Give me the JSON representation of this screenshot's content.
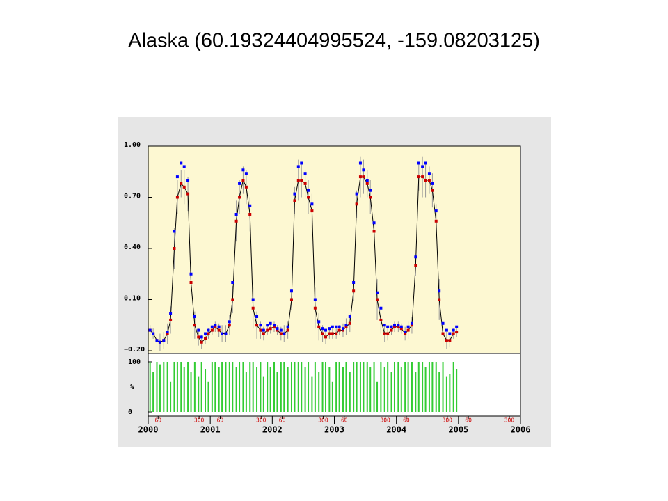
{
  "chart_data": [
    {
      "type": "scatter",
      "title": "Alaska (60.19324404995524, -159.08203125)",
      "x": [
        2000.03,
        2000.08,
        2000.14,
        2000.19,
        2000.25,
        2000.31,
        2000.36,
        2000.42,
        2000.47,
        2000.53,
        2000.58,
        2000.64,
        2000.69,
        2000.75,
        2000.81,
        2000.86,
        2000.92,
        2000.97,
        2001.03,
        2001.08,
        2001.14,
        2001.19,
        2001.25,
        2001.31,
        2001.36,
        2001.42,
        2001.47,
        2001.53,
        2001.58,
        2001.64,
        2001.69,
        2001.75,
        2001.81,
        2001.86,
        2001.92,
        2001.97,
        2002.03,
        2002.08,
        2002.14,
        2002.19,
        2002.25,
        2002.31,
        2002.36,
        2002.42,
        2002.47,
        2002.53,
        2002.58,
        2002.64,
        2002.69,
        2002.75,
        2002.81,
        2002.86,
        2002.92,
        2002.97,
        2003.03,
        2003.08,
        2003.14,
        2003.19,
        2003.25,
        2003.31,
        2003.36,
        2003.42,
        2003.47,
        2003.53,
        2003.58,
        2003.64,
        2003.69,
        2003.75,
        2003.81,
        2003.86,
        2003.92,
        2003.97,
        2004.03,
        2004.08,
        2004.14,
        2004.19,
        2004.25,
        2004.31,
        2004.36,
        2004.42,
        2004.47,
        2004.53,
        2004.58,
        2004.64,
        2004.69,
        2004.75,
        2004.81,
        2004.86,
        2004.92,
        2004.97
      ],
      "series": [
        {
          "color": "#cc0000",
          "line_color": "#000000",
          "values": [
            -0.08,
            -0.1,
            -0.14,
            -0.15,
            -0.14,
            -0.1,
            -0.02,
            0.4,
            0.7,
            0.78,
            0.76,
            0.72,
            0.2,
            -0.05,
            -0.12,
            -0.15,
            -0.13,
            -0.1,
            -0.08,
            -0.06,
            -0.08,
            -0.1,
            -0.1,
            -0.05,
            0.1,
            0.56,
            0.7,
            0.8,
            0.76,
            0.6,
            0.05,
            -0.05,
            -0.08,
            -0.1,
            -0.08,
            -0.07,
            -0.06,
            -0.08,
            -0.1,
            -0.1,
            -0.08,
            0.1,
            0.68,
            0.8,
            0.8,
            0.78,
            0.7,
            0.62,
            0.05,
            -0.06,
            -0.1,
            -0.12,
            -0.1,
            -0.1,
            -0.1,
            -0.08,
            -0.08,
            -0.06,
            -0.04,
            0.15,
            0.66,
            0.82,
            0.82,
            0.78,
            0.7,
            0.5,
            0.1,
            -0.02,
            -0.1,
            -0.1,
            -0.08,
            -0.06,
            -0.06,
            -0.07,
            -0.1,
            -0.08,
            -0.05,
            0.3,
            0.82,
            0.82,
            0.8,
            0.8,
            0.74,
            0.56,
            0.1,
            -0.1,
            -0.14,
            -0.14,
            -0.1,
            -0.09
          ],
          "errors": [
            0.03,
            0.03,
            0.04,
            0.05,
            0.05,
            0.06,
            0.08,
            0.12,
            0.1,
            0.08,
            0.1,
            0.1,
            0.12,
            0.08,
            0.05,
            0.04,
            0.03,
            0.03,
            0.03,
            0.03,
            0.04,
            0.05,
            0.05,
            0.06,
            0.08,
            0.12,
            0.1,
            0.08,
            0.1,
            0.1,
            0.12,
            0.08,
            0.05,
            0.04,
            0.03,
            0.03,
            0.03,
            0.03,
            0.04,
            0.05,
            0.05,
            0.06,
            0.08,
            0.12,
            0.1,
            0.08,
            0.1,
            0.1,
            0.12,
            0.08,
            0.05,
            0.04,
            0.03,
            0.03,
            0.03,
            0.03,
            0.04,
            0.05,
            0.05,
            0.06,
            0.08,
            0.12,
            0.1,
            0.08,
            0.1,
            0.1,
            0.12,
            0.08,
            0.05,
            0.04,
            0.03,
            0.03,
            0.03,
            0.03,
            0.04,
            0.05,
            0.05,
            0.06,
            0.08,
            0.12,
            0.1,
            0.08,
            0.1,
            0.1,
            0.12,
            0.08,
            0.05,
            0.04,
            0.03,
            0.03
          ]
        },
        {
          "color": "#0000ff",
          "values": [
            -0.08,
            -0.1,
            -0.14,
            -0.15,
            -0.14,
            -0.09,
            0.02,
            0.5,
            0.82,
            0.9,
            0.88,
            0.8,
            0.25,
            0.0,
            -0.08,
            -0.12,
            -0.1,
            -0.08,
            -0.06,
            -0.05,
            -0.06,
            -0.1,
            -0.1,
            -0.03,
            0.2,
            0.6,
            0.78,
            0.86,
            0.84,
            0.65,
            0.1,
            0.0,
            -0.05,
            -0.08,
            -0.05,
            -0.04,
            -0.05,
            -0.07,
            -0.08,
            -0.1,
            -0.06,
            0.15,
            0.72,
            0.88,
            0.9,
            0.84,
            0.74,
            0.66,
            0.1,
            -0.03,
            -0.07,
            -0.08,
            -0.07,
            -0.06,
            -0.06,
            -0.06,
            -0.07,
            -0.05,
            0.0,
            0.2,
            0.72,
            0.9,
            0.86,
            0.8,
            0.74,
            0.55,
            0.14,
            0.05,
            -0.05,
            -0.06,
            -0.06,
            -0.05,
            -0.05,
            -0.06,
            -0.09,
            -0.06,
            -0.04,
            0.35,
            0.9,
            0.88,
            0.9,
            0.84,
            0.78,
            0.62,
            0.15,
            -0.04,
            -0.08,
            -0.1,
            -0.08,
            -0.06
          ]
        }
      ],
      "xlim": [
        2000,
        2006
      ],
      "ylim": [
        -0.2,
        1.0
      ],
      "yticks": [
        {
          "value": 1.0,
          "label": "1.00"
        },
        {
          "value": 0.7,
          "label": "0.70"
        },
        {
          "value": 0.4,
          "label": "0.40"
        },
        {
          "value": 0.1,
          "label": "0.10"
        },
        {
          "value": -0.2,
          "label": "−0.20"
        }
      ],
      "background": "#fdf8d2"
    },
    {
      "type": "bar",
      "x": [
        2000.03,
        2000.08,
        2000.14,
        2000.19,
        2000.25,
        2000.31,
        2000.36,
        2000.42,
        2000.47,
        2000.53,
        2000.58,
        2000.64,
        2000.69,
        2000.75,
        2000.81,
        2000.86,
        2000.92,
        2000.97,
        2001.03,
        2001.08,
        2001.14,
        2001.19,
        2001.25,
        2001.31,
        2001.36,
        2001.42,
        2001.47,
        2001.53,
        2001.58,
        2001.64,
        2001.69,
        2001.75,
        2001.81,
        2001.86,
        2001.92,
        2001.97,
        2002.03,
        2002.08,
        2002.14,
        2002.19,
        2002.25,
        2002.31,
        2002.36,
        2002.42,
        2002.47,
        2002.53,
        2002.58,
        2002.64,
        2002.69,
        2002.75,
        2002.81,
        2002.86,
        2002.92,
        2002.97,
        2003.03,
        2003.08,
        2003.14,
        2003.19,
        2003.25,
        2003.31,
        2003.36,
        2003.42,
        2003.47,
        2003.53,
        2003.58,
        2003.64,
        2003.69,
        2003.75,
        2003.81,
        2003.86,
        2003.92,
        2003.97,
        2004.03,
        2004.08,
        2004.14,
        2004.19,
        2004.25,
        2004.31,
        2004.36,
        2004.42,
        2004.47,
        2004.53,
        2004.58,
        2004.64,
        2004.69,
        2004.75,
        2004.81,
        2004.86,
        2004.92,
        2004.97
      ],
      "values": [
        100,
        80,
        100,
        95,
        100,
        100,
        60,
        100,
        100,
        100,
        90,
        100,
        80,
        100,
        70,
        100,
        85,
        60,
        100,
        100,
        90,
        100,
        100,
        100,
        100,
        90,
        100,
        100,
        80,
        100,
        100,
        90,
        100,
        70,
        100,
        90,
        100,
        80,
        100,
        100,
        90,
        100,
        100,
        100,
        100,
        90,
        100,
        70,
        100,
        80,
        100,
        100,
        90,
        60,
        100,
        100,
        90,
        100,
        80,
        100,
        100,
        100,
        100,
        100,
        90,
        100,
        60,
        100,
        90,
        100,
        80,
        100,
        100,
        90,
        100,
        100,
        100,
        80,
        100,
        100,
        90,
        100,
        100,
        100,
        80,
        100,
        70,
        75,
        100,
        85
      ],
      "color": "#33cc33",
      "ylim": [
        0,
        100
      ],
      "yticks": [
        0,
        100
      ],
      "ylabel": "%",
      "xlim": [
        2000,
        2006
      ],
      "xticks": [
        2000,
        2001,
        2002,
        2003,
        2004,
        2005,
        2006
      ],
      "day_ticks": [
        {
          "value": 2000.16,
          "label": "60"
        },
        {
          "value": 2000.82,
          "label": "300"
        },
        {
          "value": 2001.16,
          "label": "60"
        },
        {
          "value": 2001.82,
          "label": "300"
        },
        {
          "value": 2002.16,
          "label": "60"
        },
        {
          "value": 2002.82,
          "label": "300"
        },
        {
          "value": 2003.16,
          "label": "60"
        },
        {
          "value": 2003.82,
          "label": "300"
        },
        {
          "value": 2004.16,
          "label": "60"
        },
        {
          "value": 2004.82,
          "label": "300"
        },
        {
          "value": 2005.16,
          "label": "60"
        },
        {
          "value": 2005.82,
          "label": "300"
        }
      ],
      "day_tick_color": "#cc0000"
    }
  ]
}
